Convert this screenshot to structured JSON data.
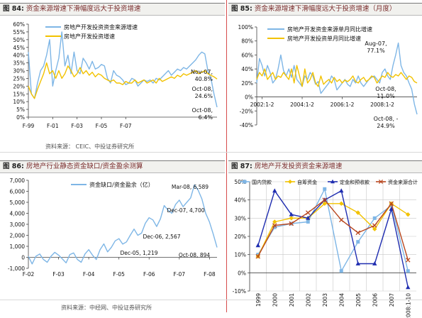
{
  "panels": {
    "p84": {
      "fig": "图 84:",
      "title": "资金来源增速下滑幅度远大于投资增速"
    },
    "p85": {
      "fig": "图 85:",
      "title": "资金来源增速下滑幅度远大于投资增速（月度）"
    },
    "p86": {
      "fig": "图 86:",
      "title": "房地产行业静态资金缺口/资金盈余测算"
    },
    "p87": {
      "fig": "图 87:",
      "title": "房地产开发投资资金来源增速"
    }
  },
  "sources": {
    "top": "资料来源： CEIC、中投证券研究所",
    "bottom": "资料来源：中经网、中投证券研究所"
  },
  "colors": {
    "blue": "#7eb6e6",
    "yellow": "#f2c200",
    "navy": "#1f2db0",
    "brown": "#b8461e",
    "grid": "#c8c8c8",
    "divider": "#d64c4c"
  },
  "chart_data": [
    {
      "id": "fig84",
      "type": "line",
      "title": "",
      "xlabel": "",
      "ylabel": "",
      "ylim": [
        0,
        60
      ],
      "yticks": [
        "0%",
        "5%",
        "10%",
        "15%",
        "20%",
        "25%",
        "30%",
        "35%",
        "40%",
        "45%",
        "50%",
        "55%",
        "60%"
      ],
      "xticks": [
        "F-99",
        "F-01",
        "F-03",
        "F-05",
        "F-07"
      ],
      "grid": false,
      "legend_position": "top-left",
      "series": [
        {
          "name": "房地产开发投资资金来源增速",
          "color": "#7eb6e6",
          "values": [
            42,
            15,
            12,
            22,
            30,
            33,
            40,
            50,
            20,
            30,
            38,
            55,
            33,
            40,
            28,
            42,
            30,
            28,
            38,
            35,
            31,
            36,
            31,
            32,
            34,
            33,
            25,
            22,
            30,
            27,
            26,
            24,
            21,
            22,
            25,
            24,
            20,
            22,
            24,
            23,
            24,
            22,
            25,
            24,
            26,
            28,
            30,
            27,
            29,
            31,
            30,
            32,
            31,
            33,
            35,
            37,
            40,
            42,
            40.8,
            30,
            25,
            15,
            6.4
          ]
        },
        {
          "name": "房地产开发投资增速",
          "color": "#f2c200",
          "values": [
            20,
            15,
            12,
            18,
            23,
            28,
            35,
            28,
            30,
            25,
            30,
            25,
            28,
            33,
            30,
            26,
            28,
            32,
            28,
            30,
            27,
            29,
            26,
            28,
            27,
            25,
            24,
            23,
            24,
            22,
            22,
            21,
            23,
            22,
            22,
            24,
            22,
            23,
            24,
            22,
            23,
            24,
            22,
            25,
            23,
            24,
            25,
            26,
            25,
            27,
            26,
            28,
            27,
            28,
            29,
            30,
            28,
            29,
            30,
            28,
            27,
            26,
            24.6
          ]
        }
      ],
      "annotations": [
        {
          "lines": [
            "Nov-07,",
            "40.8%"
          ]
        },
        {
          "lines": [
            "Oct-08,",
            "24.6%"
          ]
        },
        {
          "lines": [
            "Oct-08,",
            "6.4%"
          ]
        }
      ]
    },
    {
      "id": "fig85",
      "type": "line",
      "title": "",
      "xlabel": "",
      "ylabel": "",
      "ylim": [
        -40,
        100
      ],
      "yticks": [
        "-40%",
        "-20%",
        "0%",
        "20%",
        "40%",
        "60%",
        "80%",
        "100%"
      ],
      "xticks": [
        "2002:1-2",
        "2004:1-2",
        "2006:1-2",
        "2008:1-2"
      ],
      "grid": false,
      "legend_position": "top-left",
      "series": [
        {
          "name": "房地产开发资金来源单月同比增速",
          "color": "#7eb6e6",
          "values": [
            20,
            55,
            45,
            30,
            45,
            35,
            20,
            25,
            40,
            60,
            38,
            30,
            40,
            28,
            45,
            25,
            20,
            15,
            30,
            25,
            35,
            30,
            18,
            22,
            5,
            10,
            15,
            20,
            30,
            25,
            10,
            15,
            20,
            25,
            18,
            15,
            25,
            20,
            30,
            20,
            15,
            20,
            25,
            28,
            30,
            25,
            20,
            35,
            40,
            30,
            25,
            45,
            60,
            77.1,
            45,
            35,
            30,
            20,
            11.0,
            -10,
            -24.9
          ]
        },
        {
          "name": "房地产开发投资单月同比增速",
          "color": "#f2c200",
          "values": [
            25,
            35,
            30,
            40,
            25,
            30,
            35,
            25,
            30,
            28,
            35,
            30,
            25,
            40,
            20,
            45,
            30,
            15,
            40,
            20,
            25,
            35,
            20,
            15,
            30,
            18,
            22,
            25,
            20,
            28,
            22,
            25,
            20,
            24,
            22,
            25,
            30,
            22,
            20,
            25,
            28,
            22,
            25,
            30,
            28,
            20,
            25,
            30,
            28,
            35,
            30,
            28,
            32,
            30,
            35,
            30,
            25,
            30,
            28,
            22,
            20
          ]
        }
      ],
      "annotations": [
        {
          "lines": [
            "Aug-07,",
            "77.1%"
          ]
        },
        {
          "lines": [
            "Oct-08,",
            "11.0%"
          ]
        },
        {
          "lines": [
            "Oct-08, -",
            "24.9%"
          ]
        }
      ]
    },
    {
      "id": "fig86",
      "type": "line",
      "title": "",
      "xlabel": "",
      "ylabel": "",
      "ylim": [
        -1000,
        7000
      ],
      "yticks": [
        "-1,000",
        "0",
        "1,000",
        "2,000",
        "3,000",
        "4,000",
        "5,000",
        "6,000",
        "7,000"
      ],
      "xticks": [
        "F-02",
        "F-03",
        "F-04",
        "F-05",
        "F-06",
        "F-07",
        "F-08"
      ],
      "grid": false,
      "legend_position": "top-left",
      "series": [
        {
          "name": "资金缺口/资金盈余（亿）",
          "color": "#7eb6e6",
          "values": [
            100,
            -600,
            100,
            300,
            -200,
            -450,
            100,
            450,
            200,
            -150,
            -500,
            250,
            400,
            -200,
            -450,
            300,
            700,
            200,
            -200,
            700,
            1219,
            500,
            900,
            1500,
            1700,
            1200,
            1400,
            2000,
            2567,
            2000,
            2200,
            3100,
            3600,
            3400,
            2800,
            3500,
            4700,
            4300,
            4000,
            4800,
            5200,
            4600,
            5000,
            5400,
            6589,
            6100,
            5300,
            4000,
            3200,
            2100,
            894
          ]
        }
      ],
      "annotations": [
        {
          "text": "Mar-08, 6,589"
        },
        {
          "text": "Dec-07, 4,700"
        },
        {
          "text": "Dec-06, 2,567"
        },
        {
          "text": "Dec-05, 1,219"
        },
        {
          "text": "Oct-08, 894"
        }
      ]
    },
    {
      "id": "fig87",
      "type": "line",
      "title": "",
      "xlabel": "",
      "ylabel": "",
      "ylim": [
        -10,
        50
      ],
      "yticks": [
        "-10%",
        "0%",
        "10%",
        "20%",
        "30%",
        "40%",
        "50%"
      ],
      "categories": [
        "1999",
        "2000",
        "2001",
        "2002",
        "2003",
        "2004",
        "2005",
        "2006",
        "2007",
        "2008:1-10"
      ],
      "grid": true,
      "legend_position": "top",
      "series": [
        {
          "name": "国内贷款",
          "color": "#7eb6e6",
          "marker": "square",
          "values": [
            10,
            25,
            27,
            28,
            46,
            1,
            17,
            30,
            37,
            1
          ]
        },
        {
          "name": "自筹资金",
          "color": "#f2c200",
          "marker": "diamond",
          "values": [
            9,
            28,
            30,
            30,
            38,
            38,
            33,
            24,
            38,
            32
          ]
        },
        {
          "name": "定金和预收款",
          "color": "#1f2db0",
          "marker": "triangle",
          "values": [
            15,
            45,
            32,
            30,
            40,
            45,
            5,
            5,
            35,
            -8
          ]
        },
        {
          "name": "资金来源合计",
          "color": "#b8461e",
          "marker": "cross",
          "values": [
            9,
            26,
            27,
            33,
            40,
            29,
            22,
            26,
            38,
            7
          ]
        }
      ]
    }
  ]
}
